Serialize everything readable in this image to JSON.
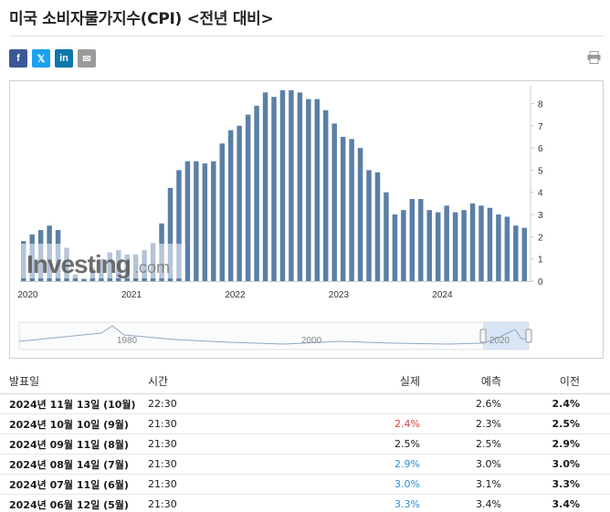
{
  "page_title": "미국 소비자물가지수(CPI) <전년 대비>",
  "share": {
    "facebook": "f",
    "twitter": "𝕏",
    "linkedin": "in",
    "email": "✉"
  },
  "icons": {
    "print": "print-icon"
  },
  "colors": {
    "bar": "#5b7fa6",
    "nav_line": "#8fa8c4",
    "negative": "#e03a3a",
    "positive": "#2a8fd6",
    "navigator_highlight": "#cfe0f2"
  },
  "chart_data": {
    "type": "bar",
    "x_ticks": [
      "2020",
      "2021",
      "2022",
      "2023",
      "2024"
    ],
    "y_ticks": [
      "0",
      "1",
      "2",
      "3",
      "4",
      "5",
      "6",
      "7",
      "8"
    ],
    "ylim": [
      0,
      8.8
    ],
    "watermark": {
      "brand": "Investing",
      "suffix": ".com"
    },
    "values": [
      1.8,
      2.1,
      2.3,
      2.5,
      2.3,
      1.5,
      0.3,
      0.1,
      0.6,
      1.0,
      1.3,
      1.4,
      1.2,
      1.2,
      1.4,
      1.7,
      2.6,
      4.2,
      5.0,
      5.4,
      5.4,
      5.3,
      5.4,
      6.2,
      6.8,
      7.0,
      7.5,
      7.9,
      8.5,
      8.3,
      8.6,
      8.6,
      8.5,
      8.2,
      8.2,
      7.7,
      7.1,
      6.5,
      6.4,
      6.0,
      5.0,
      4.9,
      4.0,
      3.0,
      3.2,
      3.7,
      3.7,
      3.2,
      3.1,
      3.4,
      3.1,
      3.2,
      3.5,
      3.4,
      3.3,
      3.0,
      2.9,
      2.5,
      2.4
    ],
    "navigator": {
      "labels": [
        "1980",
        "2000",
        "2020"
      ]
    }
  },
  "table": {
    "headers": {
      "date": "발표일",
      "time": "시간",
      "actual": "실제",
      "forecast": "예측",
      "previous": "이전"
    },
    "rows": [
      {
        "date": "2024년 11월 13일 (10월)",
        "time": "22:30",
        "actual": "",
        "forecast": "2.6%",
        "previous": "2.4%",
        "actual_color": ""
      },
      {
        "date": "2024년 10월 10일 (9월)",
        "time": "21:30",
        "actual": "2.4%",
        "forecast": "2.3%",
        "previous": "2.5%",
        "actual_color": "#e03a3a"
      },
      {
        "date": "2024년 09월 11일 (8월)",
        "time": "21:30",
        "actual": "2.5%",
        "forecast": "2.5%",
        "previous": "2.9%",
        "actual_color": "#1a1a1a"
      },
      {
        "date": "2024년 08월 14일 (7월)",
        "time": "21:30",
        "actual": "2.9%",
        "forecast": "3.0%",
        "previous": "3.0%",
        "actual_color": "#2a8fd6"
      },
      {
        "date": "2024년 07월 11일 (6월)",
        "time": "21:30",
        "actual": "3.0%",
        "forecast": "3.1%",
        "previous": "3.3%",
        "actual_color": "#2a8fd6"
      },
      {
        "date": "2024년 06월 12일 (5월)",
        "time": "21:30",
        "actual": "3.3%",
        "forecast": "3.4%",
        "previous": "3.4%",
        "actual_color": "#2a8fd6"
      }
    ]
  }
}
